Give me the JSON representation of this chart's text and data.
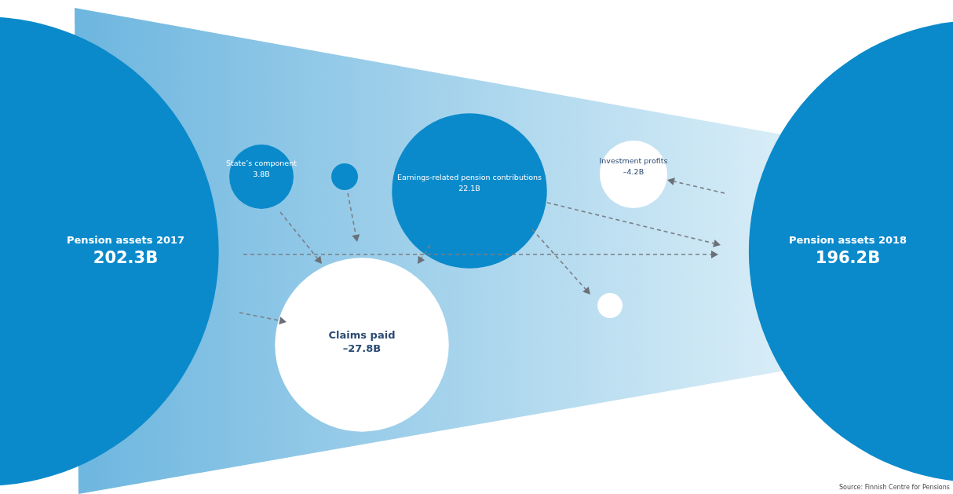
{
  "chart_data": {
    "type": "other",
    "categories": [
      "Pension assets 2017",
      "State’s component",
      "Earnings-related pension contributions",
      "Investment profits",
      "Claims paid",
      "Pension assets 2018"
    ],
    "values": [
      202.3,
      3.8,
      22.1,
      -4.2,
      -27.8,
      196.2
    ],
    "value_labels": [
      "202.3B",
      "3.8B",
      "22.1B",
      "–4.2B",
      "–27.8B",
      "196.2B"
    ],
    "colors": [
      "#0a8acb",
      "#0a8acb",
      "#0a8acb",
      "#ffffff",
      "#ffffff",
      "#0a8acb"
    ],
    "annotations": [
      "Source: Finnish Centre for Pensions"
    ]
  }
}
